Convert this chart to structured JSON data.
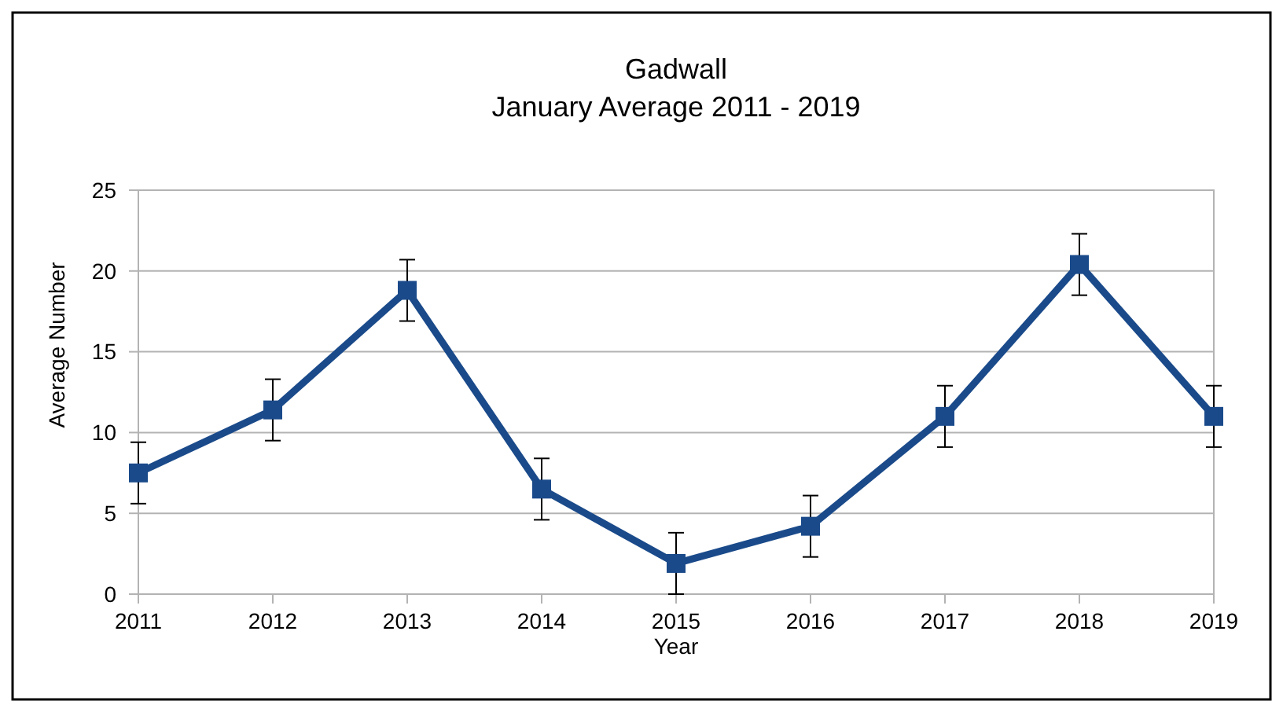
{
  "chart_data": {
    "type": "line",
    "title": "Gadwall",
    "subtitle": "January Average 2011 - 2019",
    "xlabel": "Year",
    "ylabel": "Average Number",
    "categories": [
      "2011",
      "2012",
      "2013",
      "2014",
      "2015",
      "2016",
      "2017",
      "2018",
      "2019"
    ],
    "series": [
      {
        "color": "#1a4a8a",
        "values": [
          7.5,
          11.4,
          18.8,
          6.5,
          1.9,
          4.2,
          11.0,
          20.4,
          11.0
        ],
        "errors": [
          1.9,
          1.9,
          1.9,
          1.9,
          1.9,
          1.9,
          1.9,
          1.9,
          1.9
        ]
      }
    ],
    "ylim": [
      0,
      25
    ],
    "yticks": [
      0,
      5,
      10,
      15,
      20,
      25
    ],
    "grid": "y",
    "marker": "square"
  }
}
